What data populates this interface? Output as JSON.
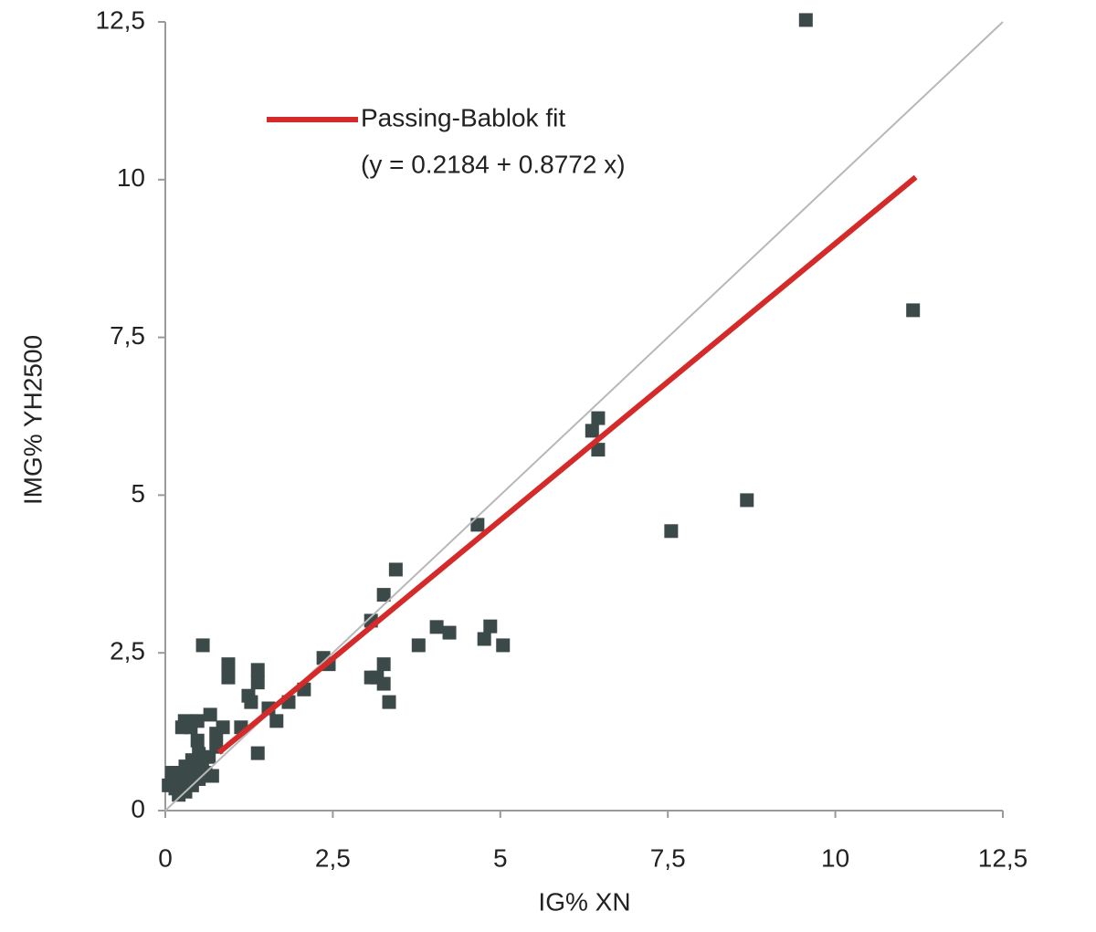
{
  "chart_data": {
    "type": "scatter",
    "xlabel": "IG% XN",
    "ylabel": "IMG% YH2500",
    "xlim": [
      0,
      12.5
    ],
    "ylim": [
      0,
      12.5
    ],
    "xticks": [
      0,
      {
        "value": 2.5,
        "label": "2,5"
      },
      5,
      {
        "value": 7.5,
        "label": "7,5"
      },
      10,
      {
        "value": 12.5,
        "label": "12,5"
      }
    ],
    "yticks": [
      0,
      {
        "value": 2.5,
        "label": "2,5"
      },
      5,
      {
        "value": 7.5,
        "label": "7,5"
      },
      10,
      {
        "value": 12.5,
        "label": "12,5"
      }
    ],
    "annotation": "(y = 0.2184 + 0.8772 x)",
    "series": [
      {
        "mode": "markers",
        "color": "#3b4a48",
        "x": [
          9.56,
          11.16,
          6.46,
          6.37,
          6.46,
          4.66,
          7.55,
          8.68,
          3.44,
          3.26,
          3.07,
          4.05,
          4.24,
          4.85,
          4.76,
          5.04,
          3.78,
          3.26,
          3.07,
          3.16,
          3.26,
          3.34,
          2.36,
          2.44,
          2.07,
          1.84,
          1.66,
          1.54,
          1.38,
          1.38,
          1.28,
          1.24,
          1.38,
          0.94,
          0.94,
          0.56,
          1.13,
          0.86,
          0.67,
          0.76,
          0.76,
          0.48,
          0.48,
          0.29,
          0.38,
          0.25,
          0.05,
          0.1,
          0.15,
          0.2,
          0.25,
          0.3,
          0.35,
          0.4,
          0.45,
          0.5,
          0.55,
          0.6,
          0.7,
          0.2,
          0.3,
          0.1,
          0.4,
          0.5,
          0.65
        ],
        "values": [
          12.53,
          7.93,
          6.22,
          6.02,
          5.72,
          4.53,
          4.43,
          4.92,
          3.82,
          3.42,
          3.01,
          2.91,
          2.82,
          2.92,
          2.72,
          2.62,
          2.62,
          2.32,
          2.11,
          2.11,
          2.01,
          1.72,
          2.42,
          2.32,
          1.92,
          1.72,
          1.42,
          1.62,
          2.03,
          2.23,
          1.72,
          1.82,
          0.91,
          2.32,
          2.11,
          2.62,
          1.32,
          1.32,
          1.52,
          1.01,
          1.22,
          1.11,
          1.42,
          1.42,
          1.32,
          1.32,
          0.4,
          0.5,
          0.35,
          0.6,
          0.45,
          0.7,
          0.55,
          0.8,
          0.65,
          0.5,
          0.75,
          0.6,
          0.55,
          0.25,
          0.3,
          0.6,
          0.4,
          0.9,
          0.85
        ]
      },
      {
        "mode": "line",
        "color": "#b8b8b8",
        "x": [
          0,
          12.5
        ],
        "values": [
          0,
          12.5
        ]
      },
      {
        "mode": "line",
        "name": "Passing-Bablok fit",
        "color": "#d42a2a",
        "x": [
          0.8,
          11.2
        ],
        "values": [
          0.92,
          10.04
        ]
      }
    ]
  }
}
